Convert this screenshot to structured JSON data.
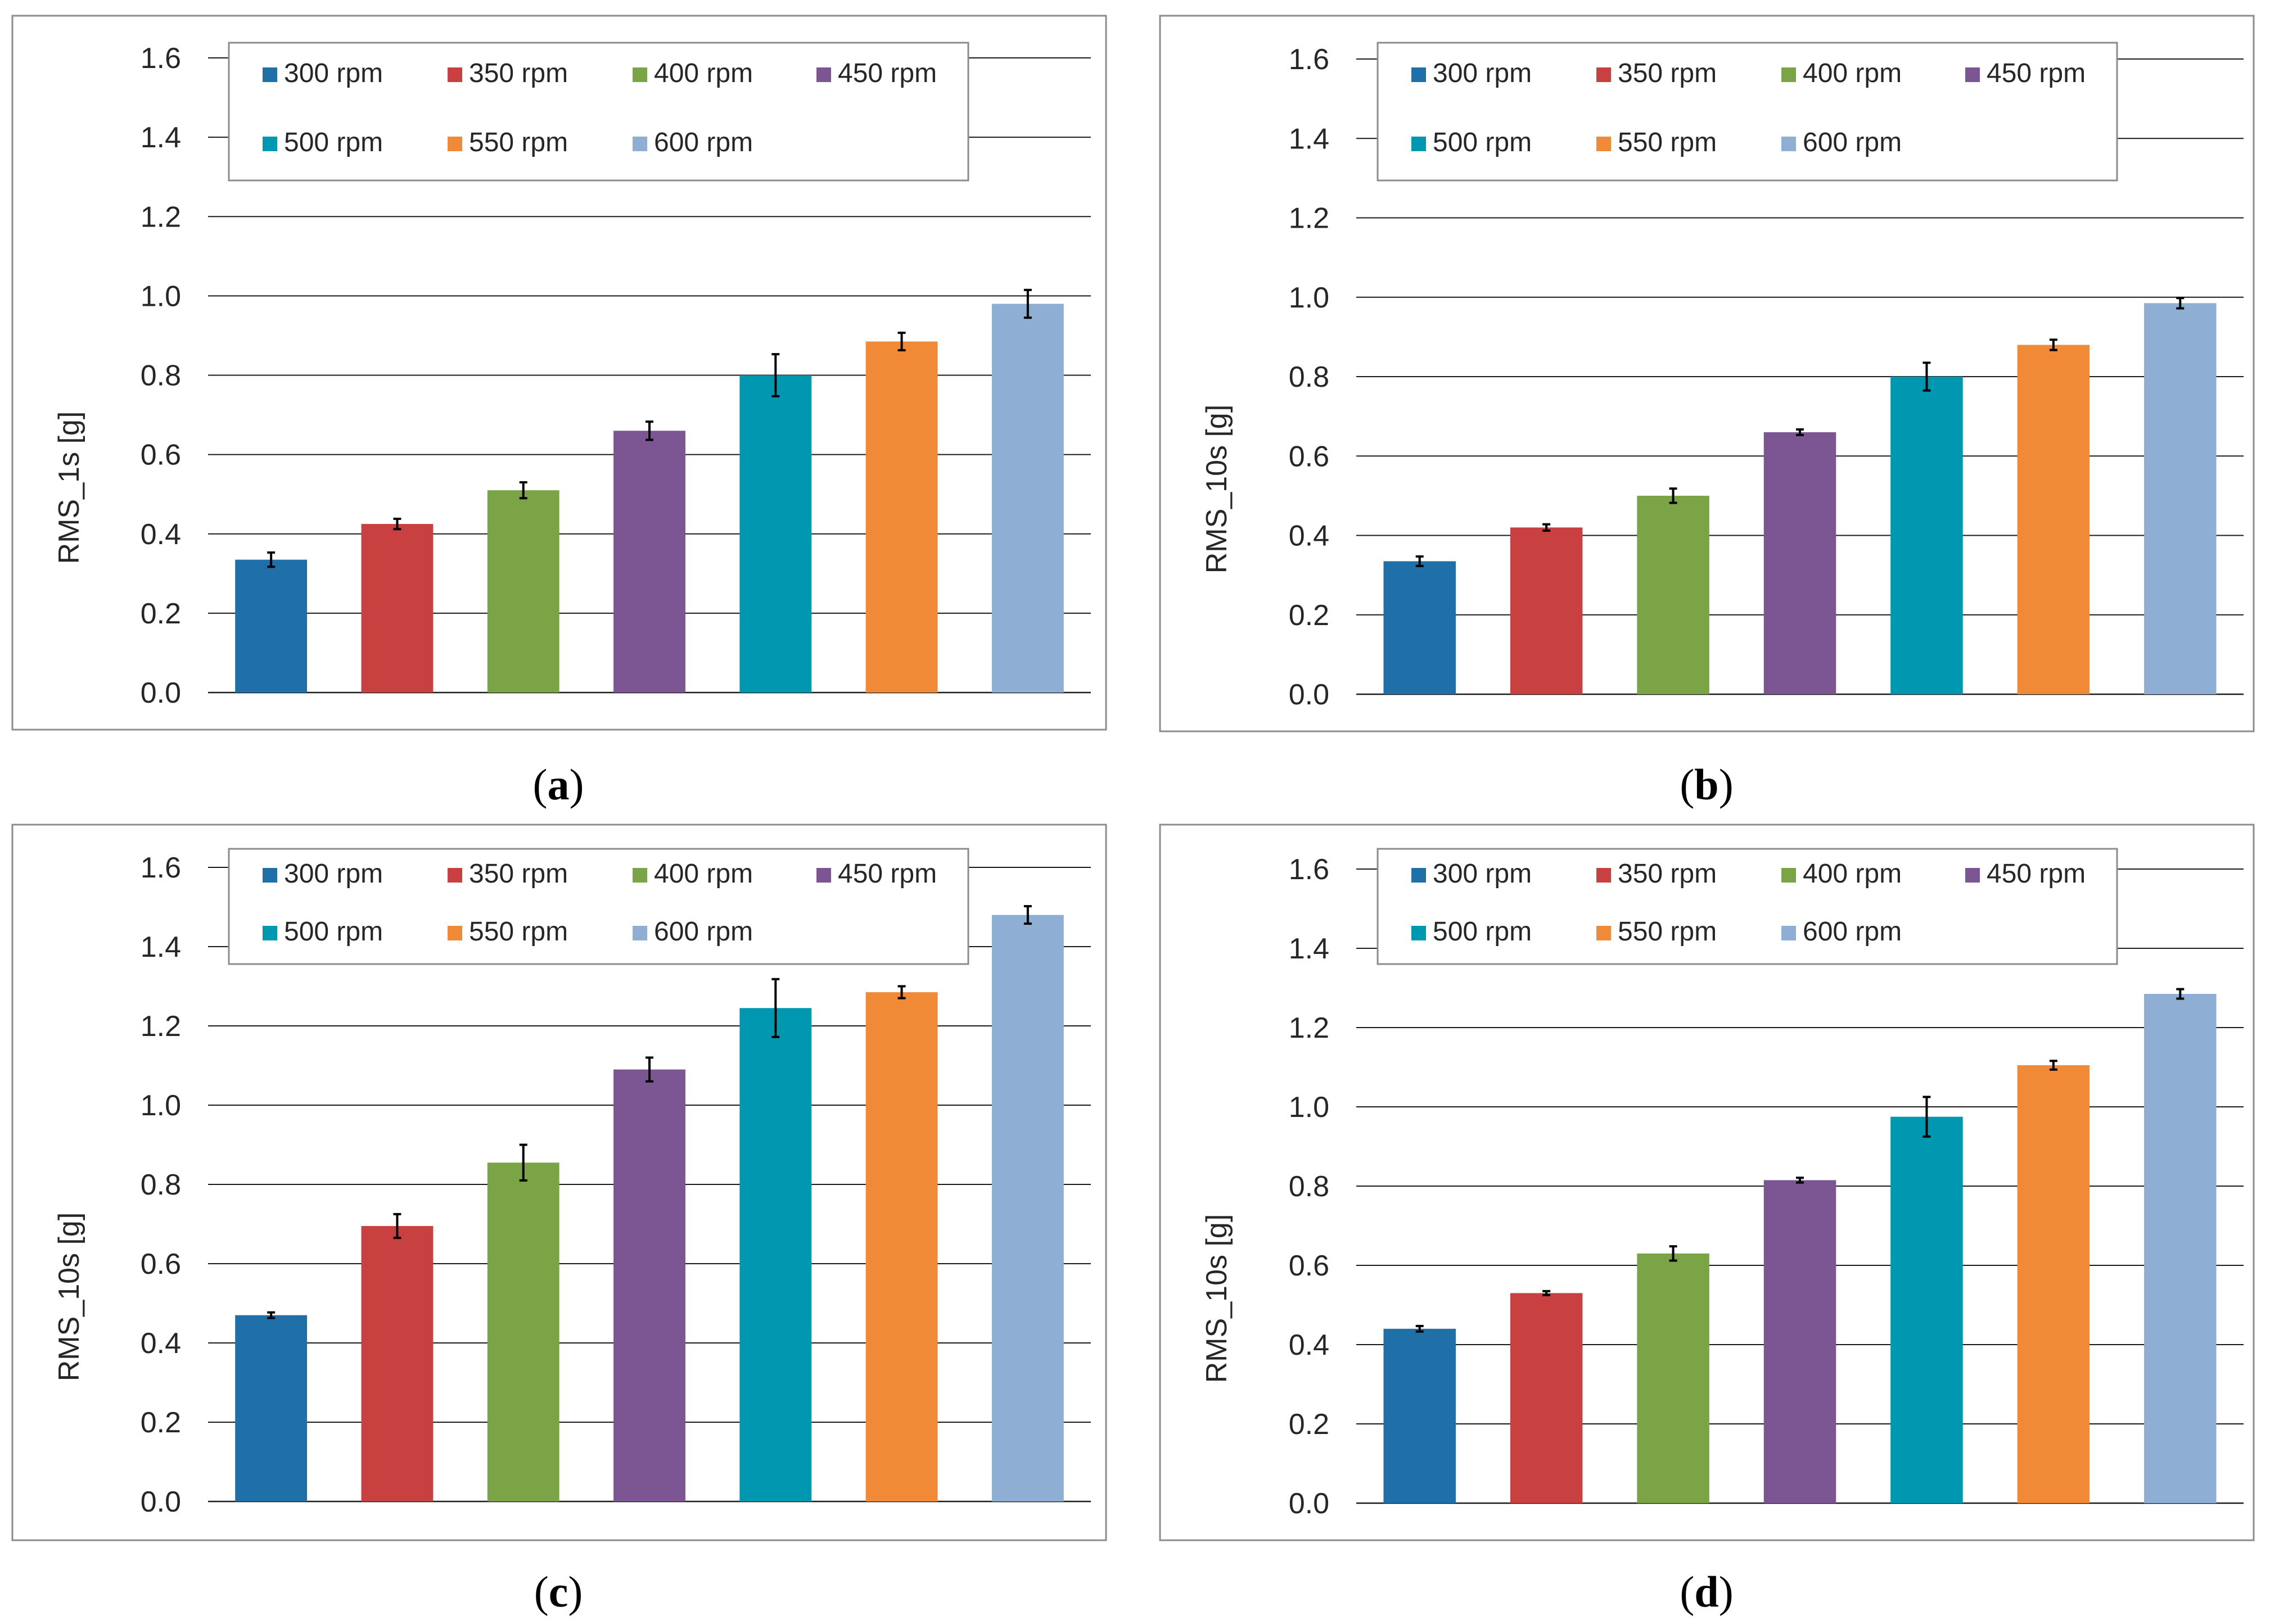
{
  "chart_data": [
    {
      "type": "bar",
      "panel": "a",
      "caption": {
        "open": "(",
        "letter": "a",
        "close": ")"
      },
      "ylabel": "RMS_1s [g]",
      "ylim": [
        0.0,
        1.6
      ],
      "yticks": [
        "0.0",
        "0.2",
        "0.4",
        "0.6",
        "0.8",
        "1.0",
        "1.2",
        "1.4",
        "1.6"
      ],
      "legend_placement": "top",
      "categories": [
        "300 rpm",
        "350 rpm",
        "400 rpm",
        "450 rpm",
        "500 rpm",
        "550 rpm",
        "600 rpm"
      ],
      "values": [
        0.335,
        0.425,
        0.51,
        0.66,
        0.8,
        0.885,
        0.98
      ],
      "errors": [
        0.018,
        0.013,
        0.02,
        0.023,
        0.053,
        0.022,
        0.035
      ]
    },
    {
      "type": "bar",
      "panel": "b",
      "caption": {
        "open": "(",
        "letter": "b",
        "close": ")"
      },
      "ylabel": "RMS_10s [g]",
      "ylim": [
        0.0,
        1.6
      ],
      "yticks": [
        "0.0",
        "0.2",
        "0.4",
        "0.6",
        "0.8",
        "1.0",
        "1.2",
        "1.4",
        "1.6"
      ],
      "legend_placement": "top",
      "categories": [
        "300 rpm",
        "350 rpm",
        "400 rpm",
        "450 rpm",
        "500 rpm",
        "550 rpm",
        "600 rpm"
      ],
      "values": [
        0.335,
        0.42,
        0.5,
        0.66,
        0.8,
        0.88,
        0.985
      ],
      "errors": [
        0.012,
        0.008,
        0.018,
        0.007,
        0.035,
        0.013,
        0.013
      ]
    },
    {
      "type": "bar",
      "panel": "c",
      "caption": {
        "open": "(",
        "letter": "c",
        "close": ")"
      },
      "ylabel": "RMS_10s [g]",
      "ylim": [
        0.0,
        1.6
      ],
      "yticks": [
        "0.0",
        "0.2",
        "0.4",
        "0.6",
        "0.8",
        "1.0",
        "1.2",
        "1.4",
        "1.6"
      ],
      "legend_placement": "top",
      "categories": [
        "300 rpm",
        "350 rpm",
        "400 rpm",
        "450 rpm",
        "500 rpm",
        "550 rpm",
        "600 rpm"
      ],
      "values": [
        0.47,
        0.695,
        0.855,
        1.09,
        1.245,
        1.285,
        1.48
      ],
      "errors": [
        0.007,
        0.03,
        0.045,
        0.03,
        0.073,
        0.015,
        0.022
      ]
    },
    {
      "type": "bar",
      "panel": "d",
      "caption": {
        "open": "(",
        "letter": "d",
        "close": ")"
      },
      "ylabel": "RMS_10s [g]",
      "ylim": [
        0.0,
        1.6
      ],
      "yticks": [
        "0.0",
        "0.2",
        "0.4",
        "0.6",
        "0.8",
        "1.0",
        "1.2",
        "1.4",
        "1.6"
      ],
      "legend_placement": "top",
      "categories": [
        "300 rpm",
        "350 rpm",
        "400 rpm",
        "450 rpm",
        "500 rpm",
        "550 rpm",
        "600 rpm"
      ],
      "values": [
        0.44,
        0.53,
        0.63,
        0.815,
        0.975,
        1.105,
        1.285
      ],
      "errors": [
        0.007,
        0.005,
        0.018,
        0.006,
        0.05,
        0.011,
        0.012
      ]
    }
  ],
  "colors": {
    "300 rpm": "#1f6fa9",
    "350 rpm": "#c84040",
    "400 rpm": "#7ba446",
    "450 rpm": "#7c5692",
    "500 rpm": "#0097b1",
    "550 rpm": "#f08a36",
    "600 rpm": "#8eaed4"
  }
}
